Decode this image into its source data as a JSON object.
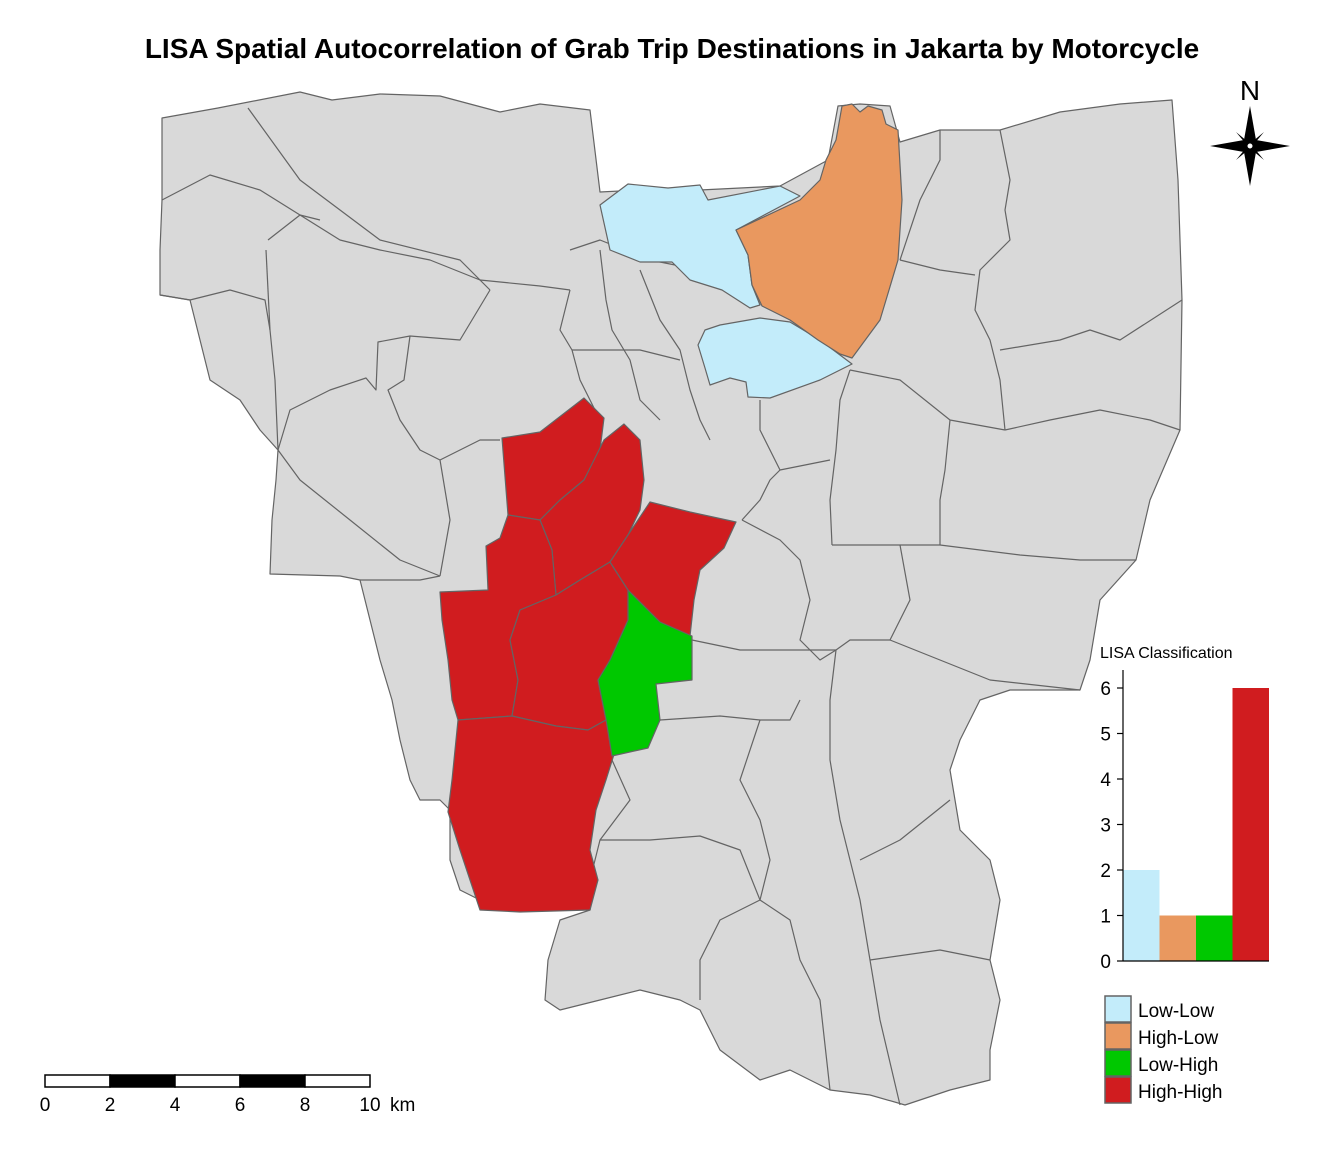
{
  "title": "LISA Spatial Autocorrelation of Grab Trip Destinations in Jakarta by Motorcycle",
  "colors": {
    "base": "#d9d9d9",
    "border": "#646464",
    "low_low": "#c3ecfa",
    "high_low": "#e9985f",
    "low_high": "#00c800",
    "high_high": "#d01c1f"
  },
  "north_arrow": {
    "letter": "N",
    "icon": "compass-rose-icon"
  },
  "scale_bar": {
    "ticks": [
      "0",
      "2",
      "4",
      "6",
      "8",
      "10"
    ],
    "unit": "km"
  },
  "legend": {
    "title": "LISA Classification",
    "items": [
      {
        "label": "Low-Low",
        "color": "#c3ecfa"
      },
      {
        "label": "High-Low",
        "color": "#e9985f"
      },
      {
        "label": "Low-High",
        "color": "#00c800"
      },
      {
        "label": "High-High",
        "color": "#d01c1f"
      }
    ]
  },
  "chart_data": {
    "type": "bar",
    "title": "LISA Classification",
    "categories": [
      "Low-Low",
      "High-Low",
      "Low-High",
      "High-High"
    ],
    "values": [
      2,
      1,
      1,
      6
    ],
    "colors": [
      "#c3ecfa",
      "#e9985f",
      "#00c800",
      "#d01c1f"
    ],
    "yticks": [
      "0",
      "1",
      "2",
      "3",
      "4",
      "5",
      "6"
    ],
    "ylim": [
      0,
      6
    ],
    "xlabel": "",
    "ylabel": "",
    "grid": false
  }
}
